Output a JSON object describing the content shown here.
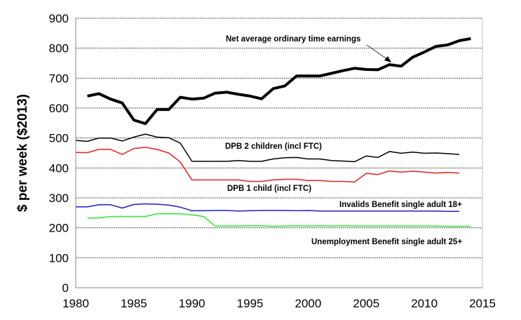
{
  "chart_data": {
    "type": "line",
    "title": "",
    "xlabel": "",
    "ylabel": "$ per week ($2013)",
    "xlim": [
      1980,
      2015
    ],
    "ylim": [
      0,
      900
    ],
    "xticks": [
      1980,
      1985,
      1990,
      1995,
      2000,
      2005,
      2010,
      2015
    ],
    "yticks": [
      0,
      100,
      200,
      300,
      400,
      500,
      600,
      700,
      800,
      900
    ],
    "grid": "horizontal dashed",
    "legend": "none (inline labels)",
    "series": [
      {
        "name": "Net average ordinary time earnings",
        "color": "#000000",
        "width": "thick",
        "x_start": 1981,
        "values": [
          640,
          648,
          630,
          617,
          560,
          548,
          595,
          595,
          636,
          630,
          633,
          650,
          653,
          646,
          640,
          631,
          665,
          674,
          707,
          707,
          707,
          716,
          725,
          733,
          729,
          728,
          745,
          740,
          770,
          787,
          806,
          811,
          825,
          832
        ]
      },
      {
        "name": "DPB 2 children (incl FTC)",
        "color": "#000000",
        "width": "thin",
        "x_start": 1980,
        "values": [
          492,
          489,
          500,
          500,
          490,
          503,
          513,
          503,
          501,
          483,
          422,
          422,
          422,
          422,
          425,
          422,
          422,
          430,
          434,
          435,
          430,
          430,
          425,
          423,
          421,
          440,
          435,
          455,
          449,
          453,
          449,
          450,
          448,
          445
        ]
      },
      {
        "name": "DPB 1 child (incl FTC)",
        "color": "#e8201c",
        "width": "thin",
        "x_start": 1980,
        "values": [
          452,
          451,
          462,
          462,
          445,
          465,
          469,
          462,
          450,
          420,
          360,
          360,
          360,
          360,
          360,
          355,
          355,
          360,
          362,
          362,
          358,
          358,
          355,
          355,
          353,
          382,
          378,
          390,
          386,
          389,
          386,
          383,
          385,
          383
        ]
      },
      {
        "name": "Invalids Benefit single adult 18+",
        "color": "#1d1dc8",
        "width": "thin",
        "x_start": 1980,
        "values": [
          270,
          270,
          277,
          277,
          266,
          278,
          280,
          279,
          276,
          269,
          257,
          257,
          258,
          258,
          256,
          257,
          258,
          258,
          258,
          257,
          258,
          256,
          256,
          256,
          256,
          256,
          256,
          256,
          256,
          256,
          256,
          256,
          255,
          255
        ]
      },
      {
        "name": "Unemployment Benefit single adult 25+",
        "color": "#2ee62e",
        "width": "thin",
        "x_start": 1981,
        "values": [
          233,
          233,
          238,
          238,
          238,
          238,
          247,
          247,
          247,
          243,
          238,
          206,
          206,
          206,
          207,
          207,
          205,
          206,
          207,
          206,
          207,
          206,
          207,
          206,
          206,
          206,
          206,
          206,
          206,
          206,
          206,
          205,
          205,
          205
        ]
      }
    ]
  }
}
